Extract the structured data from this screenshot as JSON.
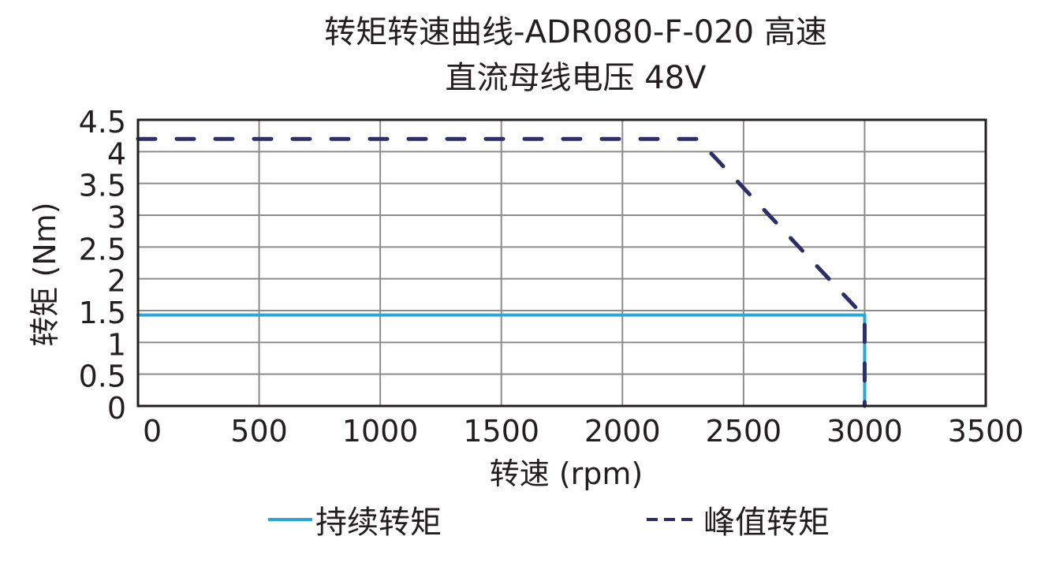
{
  "title": {
    "line1": "转矩转速曲线-ADR080-F-020 高速",
    "line2": "直流母线电压 48V"
  },
  "axes": {
    "xlabel": "转速 (rpm)",
    "ylabel": "转矩 (Nm)",
    "xticks": [
      "0",
      "500",
      "1000",
      "1500",
      "2000",
      "2500",
      "3000",
      "3500"
    ],
    "yticks": [
      "0",
      "0.5",
      "1",
      "1.5",
      "2",
      "2.5",
      "3",
      "3.5",
      "4",
      "4.5"
    ]
  },
  "legend": {
    "continuous": "持续转矩",
    "peak": "峰值转矩"
  },
  "colors": {
    "continuous": "#29a8d8",
    "peak": "#2b2f66",
    "grid": "#8c8c8c",
    "frame": "#231f20"
  },
  "chart_data": {
    "type": "line",
    "title": "转矩转速曲线-ADR080-F-020 高速 直流母线电压 48V",
    "xlabel": "转速 (rpm)",
    "ylabel": "转矩 (Nm)",
    "xlim": [
      0,
      3500
    ],
    "ylim": [
      0,
      4.5
    ],
    "grid": true,
    "legend_position": "bottom",
    "series": [
      {
        "name": "持续转矩",
        "style": "solid",
        "color": "#29a8d8",
        "x": [
          0,
          3000,
          3000
        ],
        "y": [
          1.43,
          1.43,
          0
        ]
      },
      {
        "name": "峰值转矩",
        "style": "dashed",
        "color": "#2b2f66",
        "x": [
          0,
          2310,
          3000,
          3000
        ],
        "y": [
          4.2,
          4.2,
          1.4,
          0
        ]
      }
    ]
  }
}
